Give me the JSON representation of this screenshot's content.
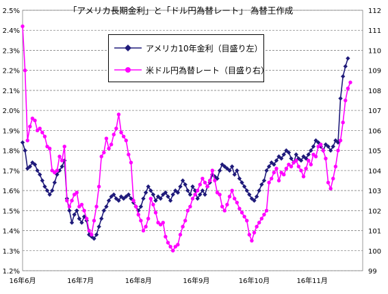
{
  "chart_data": {
    "type": "line",
    "title": "「アメリカ長期金利」と「ドル円為替レート」 為替王作成",
    "xlabel": "",
    "ylabel": "",
    "x_ticks": [
      "16年6月",
      "16年7月",
      "16年8月",
      "16年9月",
      "16年10月",
      "16年11月"
    ],
    "x_range": [
      0,
      138
    ],
    "y_left": {
      "range": [
        1.2,
        2.5
      ],
      "ticks": [
        "1.2%",
        "1.3%",
        "1.4%",
        "1.5%",
        "1.6%",
        "1.7%",
        "1.8%",
        "1.9%",
        "2.0%",
        "2.1%",
        "2.2%",
        "2.3%",
        "2.4%",
        "2.5%"
      ]
    },
    "y_right": {
      "range": [
        99,
        112
      ],
      "ticks": [
        "99",
        "100",
        "101",
        "102",
        "103",
        "104",
        "105",
        "106",
        "107",
        "108",
        "109",
        "110",
        "111",
        "112"
      ]
    },
    "grid": true,
    "legend_position": "top-center",
    "series": [
      {
        "name": "アメリカ10年金利（目盛り左）",
        "axis": "left",
        "color": "#1f1a7a",
        "marker": "diamond",
        "x": [
          0,
          1,
          2,
          3,
          4,
          5,
          6,
          7,
          8,
          9,
          10,
          11,
          12,
          13,
          14,
          15,
          16,
          17,
          18,
          19,
          20,
          21,
          22,
          23,
          24,
          25,
          26,
          27,
          28,
          29,
          30,
          31,
          32,
          33,
          34,
          35,
          36,
          37,
          38,
          39,
          40,
          41,
          42,
          43,
          44,
          45,
          46,
          47,
          48,
          49,
          50,
          51,
          52,
          53,
          54,
          55,
          56,
          57,
          58,
          59,
          60,
          61,
          62,
          63,
          64,
          65,
          66,
          67,
          68,
          69,
          70,
          71,
          72,
          73,
          74,
          75,
          76,
          77,
          78,
          79,
          80,
          81,
          82,
          83,
          84,
          85,
          86,
          87,
          88,
          89,
          90,
          91,
          92,
          93,
          94,
          95,
          96,
          97,
          98,
          99,
          100,
          101,
          102,
          103,
          104,
          105,
          106,
          107,
          108,
          109,
          110,
          111,
          112,
          113,
          114,
          115,
          116,
          117,
          118,
          119,
          120,
          121,
          122,
          123,
          124,
          125,
          126,
          127,
          128,
          129,
          130,
          131,
          132
        ],
        "values": [
          1.84,
          1.8,
          1.71,
          1.72,
          1.74,
          1.73,
          1.7,
          1.68,
          1.65,
          1.62,
          1.6,
          1.58,
          1.6,
          1.64,
          1.68,
          1.7,
          1.72,
          1.75,
          1.56,
          1.5,
          1.44,
          1.48,
          1.5,
          1.46,
          1.44,
          1.47,
          1.45,
          1.38,
          1.37,
          1.36,
          1.38,
          1.42,
          1.46,
          1.5,
          1.52,
          1.55,
          1.57,
          1.58,
          1.56,
          1.55,
          1.57,
          1.56,
          1.57,
          1.58,
          1.56,
          1.54,
          1.52,
          1.5,
          1.52,
          1.56,
          1.59,
          1.62,
          1.6,
          1.58,
          1.55,
          1.57,
          1.56,
          1.58,
          1.59,
          1.57,
          1.55,
          1.58,
          1.6,
          1.59,
          1.62,
          1.65,
          1.63,
          1.6,
          1.58,
          1.62,
          1.6,
          1.56,
          1.58,
          1.6,
          1.58,
          1.62,
          1.64,
          1.68,
          1.67,
          1.66,
          1.7,
          1.73,
          1.72,
          1.71,
          1.7,
          1.72,
          1.68,
          1.7,
          1.66,
          1.64,
          1.62,
          1.6,
          1.58,
          1.56,
          1.55,
          1.57,
          1.6,
          1.63,
          1.65,
          1.7,
          1.72,
          1.74,
          1.73,
          1.75,
          1.77,
          1.76,
          1.78,
          1.8,
          1.79,
          1.76,
          1.74,
          1.78,
          1.76,
          1.75,
          1.77,
          1.76,
          1.78,
          1.8,
          1.82,
          1.85,
          1.84,
          1.82,
          1.8,
          1.83,
          1.82,
          1.8,
          1.82,
          1.85,
          1.84,
          2.06,
          2.17,
          2.22,
          2.26
        ]
      },
      {
        "name": "米ドル円為替レート（目盛り右）",
        "axis": "right",
        "color": "#ff00ff",
        "marker": "circle",
        "x": [
          0,
          1,
          2,
          3,
          4,
          5,
          6,
          7,
          8,
          9,
          10,
          11,
          12,
          13,
          14,
          15,
          16,
          17,
          18,
          19,
          20,
          21,
          22,
          23,
          24,
          25,
          26,
          27,
          28,
          29,
          30,
          31,
          32,
          33,
          34,
          35,
          36,
          37,
          38,
          39,
          40,
          41,
          42,
          43,
          44,
          45,
          46,
          47,
          48,
          49,
          50,
          51,
          52,
          53,
          54,
          55,
          56,
          57,
          58,
          59,
          60,
          61,
          62,
          63,
          64,
          65,
          66,
          67,
          68,
          69,
          70,
          71,
          72,
          73,
          74,
          75,
          76,
          77,
          78,
          79,
          80,
          81,
          82,
          83,
          84,
          85,
          86,
          87,
          88,
          89,
          90,
          91,
          92,
          93,
          94,
          95,
          96,
          97,
          98,
          99,
          100,
          101,
          102,
          103,
          104,
          105,
          106,
          107,
          108,
          109,
          110,
          111,
          112,
          113,
          114,
          115,
          116,
          117,
          118,
          119,
          120,
          121,
          122,
          123,
          124,
          125,
          126,
          127,
          128,
          129,
          130,
          131,
          132,
          133
        ],
        "values": [
          111.2,
          109.0,
          105.5,
          106.2,
          106.6,
          106.5,
          106.0,
          106.1,
          105.9,
          105.7,
          105.2,
          105.1,
          104.0,
          103.9,
          104.0,
          104.7,
          104.5,
          105.2,
          102.5,
          102.2,
          102.5,
          102.8,
          102.9,
          102.2,
          102.3,
          102.0,
          101.6,
          101.0,
          100.8,
          101.5,
          102.2,
          103.2,
          104.7,
          104.9,
          105.6,
          105.1,
          105.3,
          105.8,
          106.1,
          106.8,
          105.9,
          105.7,
          105.5,
          104.8,
          104.4,
          102.5,
          102.2,
          101.8,
          101.5,
          101.0,
          101.2,
          101.6,
          102.6,
          102.3,
          101.9,
          101.4,
          101.3,
          101.4,
          100.7,
          100.4,
          100.2,
          100.0,
          100.2,
          100.3,
          100.8,
          101.2,
          101.5,
          102.0,
          102.2,
          102.6,
          102.8,
          103.0,
          103.3,
          103.6,
          103.4,
          103.2,
          103.5,
          104.0,
          103.5,
          102.9,
          102.8,
          102.2,
          102.0,
          102.3,
          102.7,
          103.0,
          102.6,
          102.4,
          102.1,
          101.9,
          101.7,
          101.5,
          100.8,
          100.5,
          100.9,
          101.2,
          101.4,
          101.6,
          101.8,
          102.0,
          103.4,
          103.6,
          103.9,
          104.1,
          103.5,
          103.9,
          103.8,
          104.1,
          104.3,
          104.2,
          104.4,
          104.5,
          104.2,
          104.0,
          103.7,
          104.1,
          104.5,
          104.3,
          104.8,
          104.7,
          105.2,
          105.3,
          105.0,
          104.6,
          103.4,
          103.1,
          103.6,
          104.2,
          105.0,
          105.5,
          106.4,
          107.5,
          108.1,
          108.4
        ]
      }
    ]
  }
}
